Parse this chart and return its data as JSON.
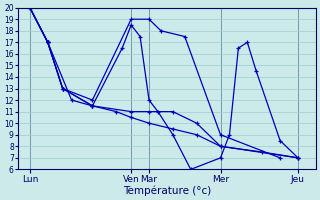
{
  "background_color": "#cceaea",
  "line_color": "#0000bb",
  "grid_color": "#99cccc",
  "xlabel": "Température (°c)",
  "ylim": [
    6,
    20
  ],
  "xlim": [
    0,
    100
  ],
  "yticks": [
    6,
    7,
    8,
    9,
    10,
    11,
    12,
    13,
    14,
    15,
    16,
    17,
    18,
    19,
    20
  ],
  "xtick_positions": [
    4,
    38,
    44,
    68,
    94
  ],
  "xtick_labels": [
    "Lun",
    "Ven",
    "Mar",
    "Mer",
    "Jeu"
  ],
  "series": [
    {
      "x": [
        4,
        10,
        15,
        25,
        38,
        44,
        52,
        60,
        68,
        94
      ],
      "y": [
        20,
        17,
        13,
        11.5,
        11,
        11,
        11,
        10,
        8,
        7
      ]
    },
    {
      "x": [
        4,
        10,
        15,
        25,
        38,
        44,
        48,
        56,
        68,
        88
      ],
      "y": [
        20,
        17,
        13,
        12,
        19,
        19,
        18,
        17.5,
        9,
        7
      ]
    },
    {
      "x": [
        4,
        10,
        15,
        25,
        35,
        38,
        41,
        44,
        47,
        52,
        58,
        68,
        71,
        74,
        77,
        80,
        88,
        94
      ],
      "y": [
        20,
        17,
        13,
        11.5,
        16.5,
        18.5,
        17.5,
        12,
        11,
        9,
        6,
        7,
        9,
        16.5,
        17,
        14.5,
        8.5,
        7
      ]
    },
    {
      "x": [
        4,
        10,
        18,
        25,
        33,
        38,
        44,
        52,
        60,
        68,
        82,
        94
      ],
      "y": [
        20,
        17,
        12,
        11.5,
        11,
        10.5,
        10,
        9.5,
        9,
        8,
        7.5,
        7
      ]
    }
  ]
}
